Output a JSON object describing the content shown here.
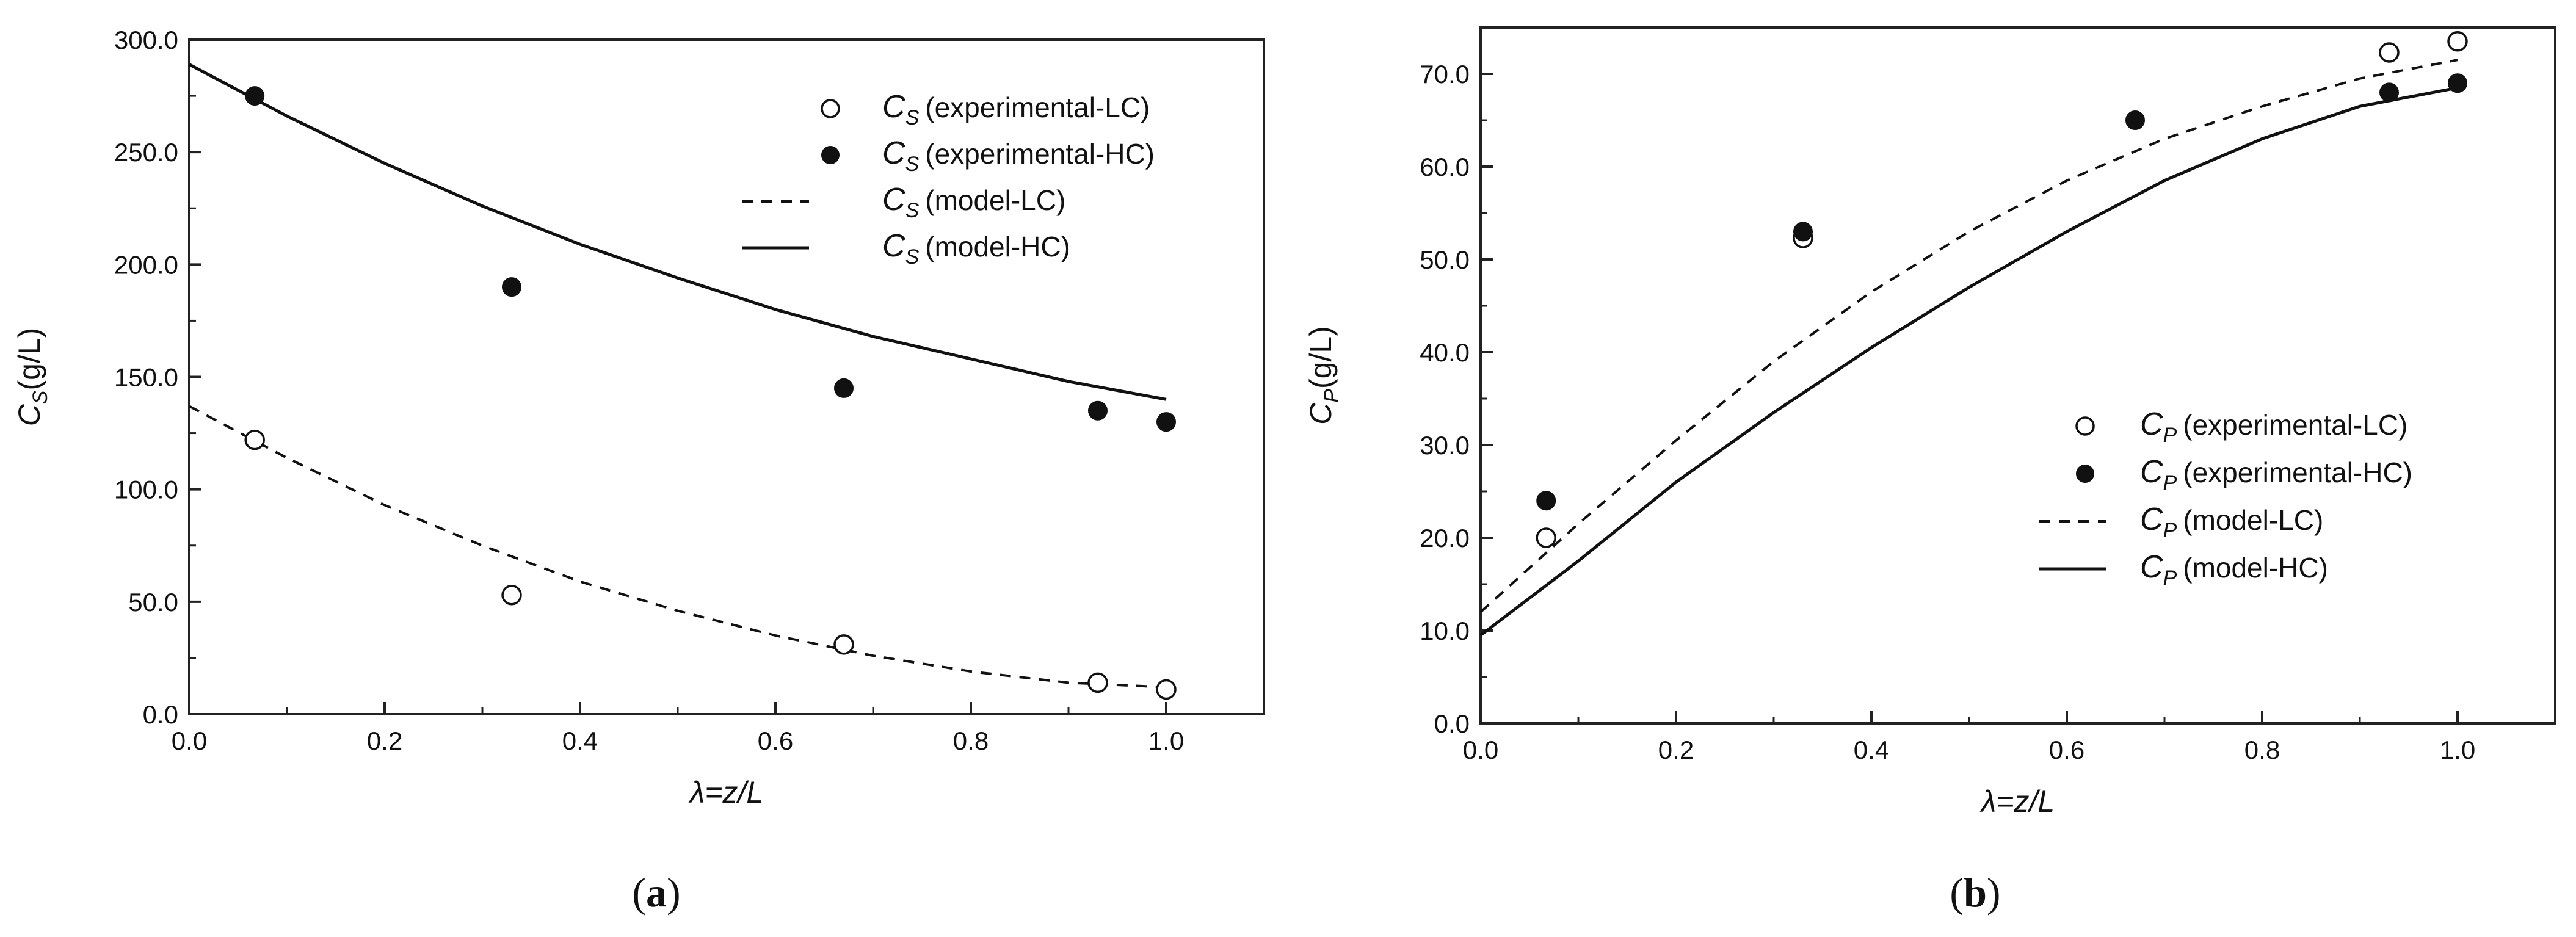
{
  "chart_data": [
    {
      "type": "line",
      "panel": "(a)",
      "caption": "(a)",
      "xlabel": {
        "main": "λ=z/L"
      },
      "ylabel": {
        "sym": "C",
        "sub": "S",
        "unit": "(g/L)"
      },
      "xlim": [
        0.0,
        1.1
      ],
      "ylim": [
        0.0,
        300.0
      ],
      "xticks": [
        0.0,
        0.2,
        0.4,
        0.6,
        0.8,
        1.0
      ],
      "xtick_labels": [
        "0.0",
        "0.2",
        "0.4",
        "0.6",
        "0.8",
        "1.0"
      ],
      "yticks": [
        0,
        50,
        100,
        150,
        200,
        250,
        300
      ],
      "ytick_labels": [
        "0.0",
        "50.0",
        "100.0",
        "150.0",
        "200.0",
        "250.0",
        "300.0"
      ],
      "grid": false,
      "legend_position": "top-right",
      "series": [
        {
          "name": "C_S (experimental-LC)",
          "sym": "C",
          "sub": "S",
          "label": "(experimental-LC)",
          "kind": "scatter",
          "marker": "open-circle",
          "x": [
            0.067,
            0.33,
            0.67,
            0.93,
            1.0
          ],
          "y": [
            122,
            53,
            31,
            14,
            11
          ]
        },
        {
          "name": "C_S (experimental-HC)",
          "sym": "C",
          "sub": "S",
          "label": "(experimental-HC)",
          "kind": "scatter",
          "marker": "filled-circle",
          "x": [
            0.067,
            0.33,
            0.67,
            0.93,
            1.0
          ],
          "y": [
            275,
            190,
            145,
            135,
            130
          ]
        },
        {
          "name": "C_S (model-LC)",
          "sym": "C",
          "sub": "S",
          "label": "(model-LC)",
          "kind": "line",
          "style": "dashed",
          "x": [
            0.0,
            0.1,
            0.2,
            0.3,
            0.4,
            0.5,
            0.6,
            0.7,
            0.8,
            0.9,
            1.0
          ],
          "y": [
            137,
            114,
            93,
            75,
            59,
            46,
            35,
            26,
            19,
            14,
            12
          ]
        },
        {
          "name": "C_S (model-HC)",
          "sym": "C",
          "sub": "S",
          "label": "(model-HC)",
          "kind": "line",
          "style": "solid",
          "x": [
            0.0,
            0.1,
            0.2,
            0.3,
            0.4,
            0.5,
            0.6,
            0.7,
            0.8,
            0.9,
            1.0
          ],
          "y": [
            289,
            266,
            245,
            226,
            209,
            194,
            180,
            168,
            158,
            148,
            140
          ]
        }
      ]
    },
    {
      "type": "line",
      "panel": "(b)",
      "caption": "(b)",
      "xlabel": {
        "main": "λ=z/L"
      },
      "ylabel": {
        "sym": "C",
        "sub": "P",
        "unit": "(g/L)"
      },
      "xlim": [
        0.0,
        1.1
      ],
      "ylim": [
        0.0,
        75.0
      ],
      "xticks": [
        0.0,
        0.2,
        0.4,
        0.6,
        0.8,
        1.0
      ],
      "xtick_labels": [
        "0.0",
        "0.2",
        "0.4",
        "0.6",
        "0.8",
        "1.0"
      ],
      "yticks": [
        0,
        10,
        20,
        30,
        40,
        50,
        60,
        70
      ],
      "ytick_labels": [
        "0.0",
        "10.0",
        "20.0",
        "30.0",
        "40.0",
        "50.0",
        "60.0",
        "70.0"
      ],
      "grid": false,
      "legend_position": "bottom-right",
      "series": [
        {
          "name": "C_P (experimental-LC)",
          "sym": "C",
          "sub": "P",
          "label": "(experimental-LC)",
          "kind": "scatter",
          "marker": "open-circle",
          "x": [
            0.067,
            0.33,
            0.93,
            1.0
          ],
          "y": [
            20,
            52.3,
            72.3,
            73.5
          ]
        },
        {
          "name": "C_P (experimental-HC)",
          "sym": "C",
          "sub": "P",
          "label": "(experimental-HC)",
          "kind": "scatter",
          "marker": "filled-circle",
          "x": [
            0.067,
            0.33,
            0.67,
            0.93,
            1.0
          ],
          "y": [
            24,
            53,
            65,
            68,
            69
          ]
        },
        {
          "name": "C_P (model-LC)",
          "sym": "C",
          "sub": "P",
          "label": "(model-LC)",
          "kind": "line",
          "style": "dashed",
          "x": [
            0.0,
            0.1,
            0.2,
            0.3,
            0.4,
            0.5,
            0.6,
            0.7,
            0.8,
            0.9,
            1.0
          ],
          "y": [
            12,
            21.5,
            30.5,
            39,
            46.5,
            53,
            58.5,
            63,
            66.5,
            69.5,
            71.5
          ]
        },
        {
          "name": "C_P (model-HC)",
          "sym": "C",
          "sub": "P",
          "label": "(model-HC)",
          "kind": "line",
          "style": "solid",
          "x": [
            0.0,
            0.1,
            0.2,
            0.3,
            0.4,
            0.5,
            0.6,
            0.7,
            0.8,
            0.9,
            1.0
          ],
          "y": [
            9.5,
            17.5,
            26,
            33.5,
            40.5,
            47,
            53,
            58.5,
            63,
            66.5,
            68.5
          ]
        }
      ]
    }
  ]
}
